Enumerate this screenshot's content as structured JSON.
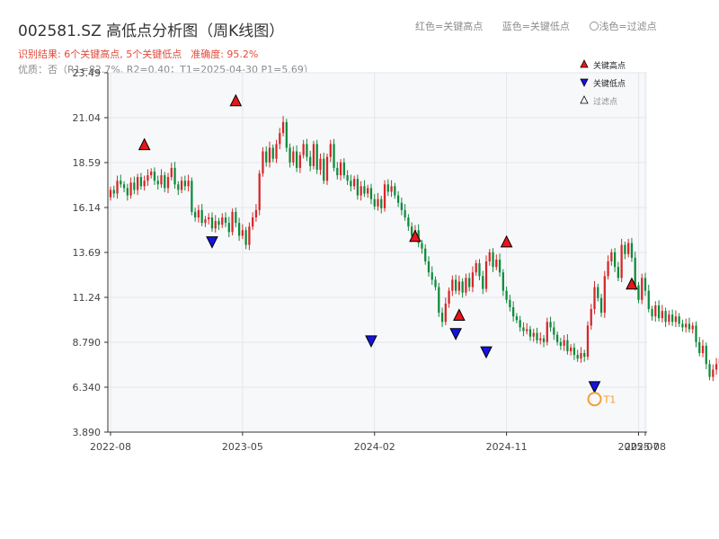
{
  "header": {
    "title": "002581.SZ 高低点分析图（周K线图）",
    "result_text": "识别结果: 6个关键高点, 5个关键低点",
    "accuracy_text": "准确度: 95.2%",
    "quality_text": "优质：否（R1=82.7%, R2=0.40；T1=2025-04-30 P1=5.69）"
  },
  "top_legend": {
    "red": "红色=关键高点",
    "blue": "蓝色=关键低点",
    "light": "〇浅色=过滤点"
  },
  "colors": {
    "up": "#d62728",
    "down": "#0f8a3c",
    "high_marker": "#e8151b",
    "low_marker": "#1414e0",
    "t1_marker": "#f0a030",
    "plot_bg": "#f7f8fa",
    "grid": "#e3e6ea",
    "axis": "#333333"
  },
  "chart_data": {
    "type": "candlestick",
    "ylim": [
      3.89,
      23.49
    ],
    "y_ticks": [
      "3.890",
      "6.340",
      "8.790",
      "11.24",
      "13.69",
      "16.14",
      "18.59",
      "21.04",
      "23.49"
    ],
    "x_ticks": [
      {
        "label": "2022-08",
        "week": 0
      },
      {
        "label": "2023-05",
        "week": 39
      },
      {
        "label": "2024-02",
        "week": 78
      },
      {
        "label": "2024-11",
        "week": 117
      },
      {
        "label": "2025-07",
        "week": 156
      },
      {
        "label": "2025-08",
        "week": 158
      }
    ],
    "closes": [
      17.1,
      16.9,
      17.6,
      17.4,
      17.2,
      16.8,
      17.5,
      17.1,
      17.8,
      17.3,
      17.6,
      17.9,
      18.1,
      17.6,
      17.4,
      17.9,
      17.2,
      17.8,
      18.3,
      17.4,
      17.1,
      17.6,
      17.3,
      17.6,
      15.9,
      15.6,
      16.0,
      15.3,
      15.5,
      15.6,
      15.0,
      15.4,
      15.2,
      15.6,
      15.3,
      14.8,
      15.9,
      15.3,
      14.6,
      14.9,
      14.1,
      15.1,
      15.6,
      16.0,
      18.0,
      19.2,
      18.6,
      19.4,
      18.8,
      19.6,
      20.2,
      20.8,
      19.4,
      18.6,
      19.2,
      18.3,
      19.0,
      19.6,
      18.9,
      18.4,
      19.6,
      18.2,
      18.8,
      17.6,
      18.9,
      19.6,
      18.3,
      17.9,
      18.6,
      17.9,
      17.6,
      17.3,
      17.7,
      16.8,
      17.3,
      16.9,
      17.2,
      16.6,
      16.2,
      16.6,
      16.1,
      17.4,
      17.0,
      17.3,
      16.8,
      16.4,
      16.0,
      15.6,
      15.1,
      14.6,
      14.9,
      14.2,
      13.9,
      13.2,
      12.6,
      12.2,
      11.8,
      10.4,
      9.9,
      10.9,
      11.6,
      12.2,
      11.6,
      12.1,
      11.5,
      12.3,
      11.8,
      12.6,
      13.1,
      12.4,
      11.7,
      13.2,
      13.7,
      12.9,
      13.3,
      12.6,
      11.6,
      11.1,
      10.7,
      10.2,
      10.0,
      9.6,
      9.4,
      9.5,
      9.1,
      9.3,
      8.9,
      9.0,
      8.8,
      9.9,
      9.6,
      9.2,
      8.8,
      8.6,
      8.9,
      8.3,
      8.5,
      8.1,
      7.9,
      8.2,
      8.0,
      9.7,
      10.6,
      11.8,
      11.2,
      10.4,
      12.4,
      13.2,
      13.7,
      12.9,
      12.3,
      14.1,
      13.6,
      14.2,
      13.4,
      11.9,
      11.1,
      12.3,
      11.6,
      10.6,
      10.2,
      10.8,
      10.1,
      10.5,
      9.9,
      10.3,
      9.9,
      10.2,
      9.8,
      9.6,
      9.8,
      9.5,
      9.7,
      8.8,
      8.2,
      8.6,
      7.6,
      6.9,
      7.3,
      7.6,
      7.9,
      8.1,
      8.4,
      8.2,
      8.9,
      8.5,
      9.3,
      8.8,
      9.1,
      9.4,
      11.0,
      10.4,
      8.2,
      7.3,
      7.1,
      7.0
    ],
    "high_points": [
      {
        "week": 10,
        "price": 18.9
      },
      {
        "week": 37,
        "price": 21.3
      },
      {
        "week": 90,
        "price": 13.9
      },
      {
        "week": 103,
        "price": 9.6
      },
      {
        "week": 117,
        "price": 13.6
      },
      {
        "week": 154,
        "price": 11.3
      }
    ],
    "low_points": [
      {
        "week": 30,
        "price": 14.0
      },
      {
        "week": 77,
        "price": 8.6
      },
      {
        "week": 102,
        "price": 9.0
      },
      {
        "week": 111,
        "price": 8.0
      },
      {
        "week": 143,
        "price": 6.1
      }
    ],
    "t1_point": {
      "week": 143,
      "price": 5.69,
      "label": "T1"
    },
    "legend": [
      {
        "label": "关键高点",
        "marker": "triangle-up-red"
      },
      {
        "label": "关键低点",
        "marker": "triangle-down-blue"
      },
      {
        "label": "过滤点",
        "marker": "triangle-up-outline"
      }
    ],
    "grid": true,
    "legend_position": "top-right"
  }
}
